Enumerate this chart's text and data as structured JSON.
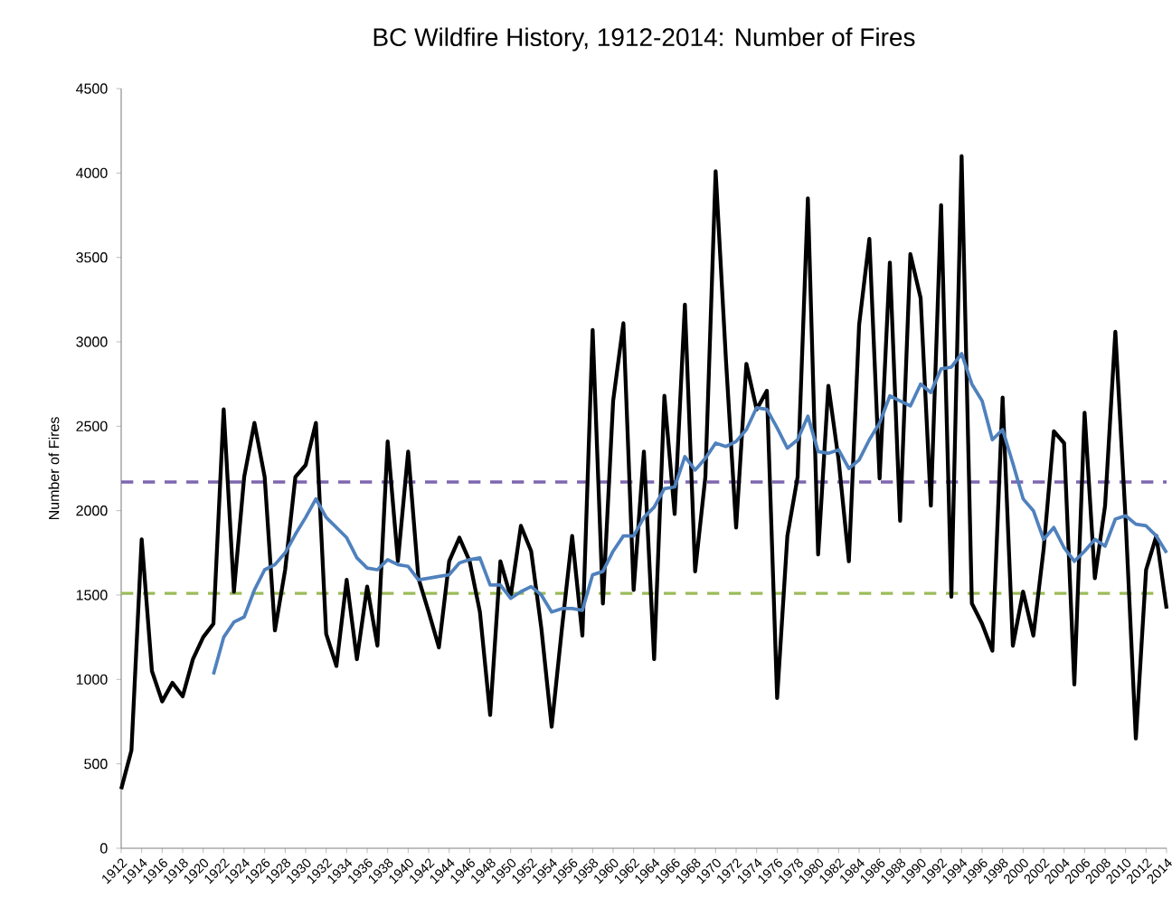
{
  "chart_data": {
    "type": "line",
    "title": "BC Wildfire History, 1912-2014:  Number of Fires",
    "ylabel": "Number of Fires",
    "x": [
      1912,
      1913,
      1914,
      1915,
      1916,
      1917,
      1918,
      1919,
      1920,
      1921,
      1922,
      1923,
      1924,
      1925,
      1926,
      1927,
      1928,
      1929,
      1930,
      1931,
      1932,
      1933,
      1934,
      1935,
      1936,
      1937,
      1938,
      1939,
      1940,
      1941,
      1942,
      1943,
      1944,
      1945,
      1946,
      1947,
      1948,
      1949,
      1950,
      1951,
      1952,
      1953,
      1954,
      1955,
      1956,
      1957,
      1958,
      1959,
      1960,
      1961,
      1962,
      1963,
      1964,
      1965,
      1966,
      1967,
      1968,
      1969,
      1970,
      1971,
      1972,
      1973,
      1974,
      1975,
      1976,
      1977,
      1978,
      1979,
      1980,
      1981,
      1982,
      1983,
      1984,
      1985,
      1986,
      1987,
      1988,
      1989,
      1990,
      1991,
      1992,
      1993,
      1994,
      1995,
      1996,
      1997,
      1998,
      1999,
      2000,
      2001,
      2002,
      2003,
      2004,
      2005,
      2006,
      2007,
      2008,
      2009,
      2010,
      2011,
      2012,
      2013,
      2014
    ],
    "series": [
      {
        "color": "#000000",
        "values": [
          350,
          580,
          1830,
          1050,
          870,
          980,
          900,
          1120,
          1250,
          1330,
          2600,
          1520,
          2200,
          2520,
          2200,
          1290,
          1650,
          2200,
          2270,
          2520,
          1270,
          1080,
          1590,
          1120,
          1550,
          1200,
          2410,
          1700,
          2350,
          1600,
          1400,
          1190,
          1700,
          1840,
          1700,
          1400,
          790,
          1700,
          1490,
          1910,
          1760,
          1300,
          720,
          1300,
          1850,
          1260,
          3070,
          1450,
          2650,
          3110,
          1530,
          2350,
          1120,
          2680,
          1980,
          3220,
          1640,
          2200,
          4010,
          2900,
          1900,
          2870,
          2600,
          2710,
          890,
          1850,
          2200,
          3850,
          1740,
          2740,
          2300,
          1700,
          3100,
          3610,
          2190,
          3470,
          1940,
          3520,
          3260,
          2030,
          3810,
          1490,
          4100,
          1450,
          1330,
          1170,
          2670,
          1200,
          1520,
          1260,
          1770,
          2470,
          2400,
          970,
          2580,
          1600,
          2030,
          3060,
          1950,
          650,
          1650,
          1850,
          1420
        ]
      },
      {
        "color": "#4f81bd",
        "x": [
          1921,
          1922,
          1923,
          1924,
          1925,
          1926,
          1927,
          1928,
          1929,
          1930,
          1931,
          1932,
          1933,
          1934,
          1935,
          1936,
          1937,
          1938,
          1939,
          1940,
          1941,
          1942,
          1943,
          1944,
          1945,
          1946,
          1947,
          1948,
          1949,
          1950,
          1951,
          1952,
          1953,
          1954,
          1955,
          1956,
          1957,
          1958,
          1959,
          1960,
          1961,
          1962,
          1963,
          1964,
          1965,
          1966,
          1967,
          1968,
          1969,
          1970,
          1971,
          1972,
          1973,
          1974,
          1975,
          1976,
          1977,
          1978,
          1979,
          1980,
          1981,
          1982,
          1983,
          1984,
          1985,
          1986,
          1987,
          1988,
          1989,
          1990,
          1991,
          1992,
          1993,
          1994,
          1995,
          1996,
          1997,
          1998,
          1999,
          2000,
          2001,
          2002,
          2003,
          2004,
          2005,
          2006,
          2007,
          2008,
          2009,
          2010,
          2011,
          2012,
          2013,
          2014
        ],
        "values": [
          1030,
          1250,
          1340,
          1370,
          1530,
          1650,
          1680,
          1750,
          1860,
          1960,
          2070,
          1960,
          1900,
          1840,
          1720,
          1660,
          1650,
          1710,
          1680,
          1670,
          1590,
          1600,
          1610,
          1620,
          1690,
          1710,
          1720,
          1560,
          1560,
          1480,
          1520,
          1550,
          1500,
          1400,
          1420,
          1420,
          1410,
          1620,
          1640,
          1760,
          1850,
          1850,
          1960,
          2020,
          2130,
          2140,
          2320,
          2240,
          2310,
          2400,
          2380,
          2410,
          2480,
          2610,
          2600,
          2490,
          2370,
          2420,
          2560,
          2350,
          2340,
          2360,
          2250,
          2300,
          2420,
          2520,
          2680,
          2650,
          2620,
          2750,
          2700,
          2840,
          2850,
          2930,
          2750,
          2650,
          2420,
          2480,
          2280,
          2070,
          2000,
          1830,
          1900,
          1780,
          1700,
          1760,
          1830,
          1790,
          1950,
          1970,
          1920,
          1910,
          1850,
          1750
        ]
      }
    ],
    "xlim": [
      1912,
      2014
    ],
    "ylim": [
      0,
      4500
    ],
    "xticks": [
      1912,
      1914,
      1916,
      1918,
      1920,
      1922,
      1924,
      1926,
      1928,
      1930,
      1932,
      1934,
      1936,
      1938,
      1940,
      1942,
      1944,
      1946,
      1948,
      1950,
      1952,
      1954,
      1956,
      1958,
      1960,
      1962,
      1964,
      1966,
      1968,
      1970,
      1972,
      1974,
      1976,
      1978,
      1980,
      1982,
      1984,
      1986,
      1988,
      1990,
      1992,
      1994,
      1996,
      1998,
      2000,
      2002,
      2004,
      2006,
      2008,
      2010,
      2012,
      2014
    ],
    "yticks": [
      0,
      500,
      1000,
      1500,
      2000,
      2500,
      3000,
      3500,
      4000,
      4500
    ],
    "ref_lines": [
      {
        "axis": "y",
        "value": 2170,
        "color": "#7f66b0",
        "line_style": "dashed"
      },
      {
        "axis": "y",
        "value": 1510,
        "color": "#9bbb59",
        "line_style": "dashed"
      }
    ],
    "marker": "none",
    "grid": false
  }
}
